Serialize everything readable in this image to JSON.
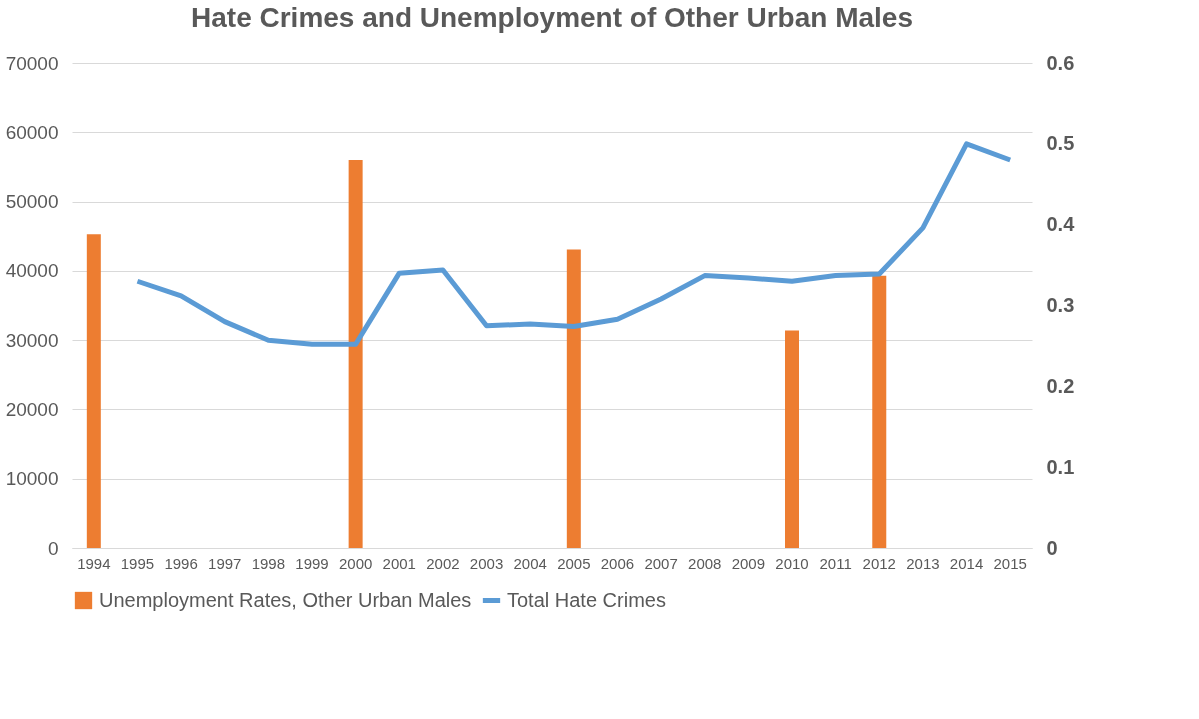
{
  "chart_data": {
    "type": "bar",
    "title": "Hate Crimes and Unemployment of  Other Urban Males",
    "categories": [
      "1994",
      "1995",
      "1996",
      "1997",
      "1998",
      "1999",
      "2000",
      "2001",
      "2002",
      "2003",
      "2004",
      "2005",
      "2006",
      "2007",
      "2008",
      "2009",
      "2010",
      "2011",
      "2012",
      "2013",
      "2014",
      "2015"
    ],
    "series": [
      {
        "name": "Unemployment Rates, Other Urban Males",
        "color": "#ed7d31",
        "values": [
          45300,
          null,
          null,
          null,
          null,
          null,
          56000,
          null,
          null,
          null,
          null,
          43100,
          null,
          null,
          null,
          null,
          31400,
          null,
          39300,
          null,
          null,
          null
        ]
      },
      {
        "name": "Total Hate Crimes",
        "type": "line",
        "axis": "y2",
        "color": "#5b9bd5",
        "values": [
          null,
          0.33,
          0.312,
          0.28,
          0.257,
          0.252,
          0.252,
          0.34,
          0.344,
          0.275,
          0.277,
          0.274,
          0.283,
          0.308,
          0.337,
          0.334,
          0.33,
          0.337,
          0.339,
          0.396,
          0.5,
          0.48
        ]
      }
    ],
    "ylim": [
      0,
      70000
    ],
    "yticks": [
      0,
      10000,
      20000,
      30000,
      40000,
      50000,
      60000,
      70000
    ],
    "y2lim": [
      0,
      0.6
    ],
    "y2ticks": [
      0,
      0.1,
      0.2,
      0.3,
      0.4,
      0.5,
      0.6
    ],
    "grid": "y",
    "legend": "bottom",
    "line_style": "solid",
    "marker": "none"
  }
}
